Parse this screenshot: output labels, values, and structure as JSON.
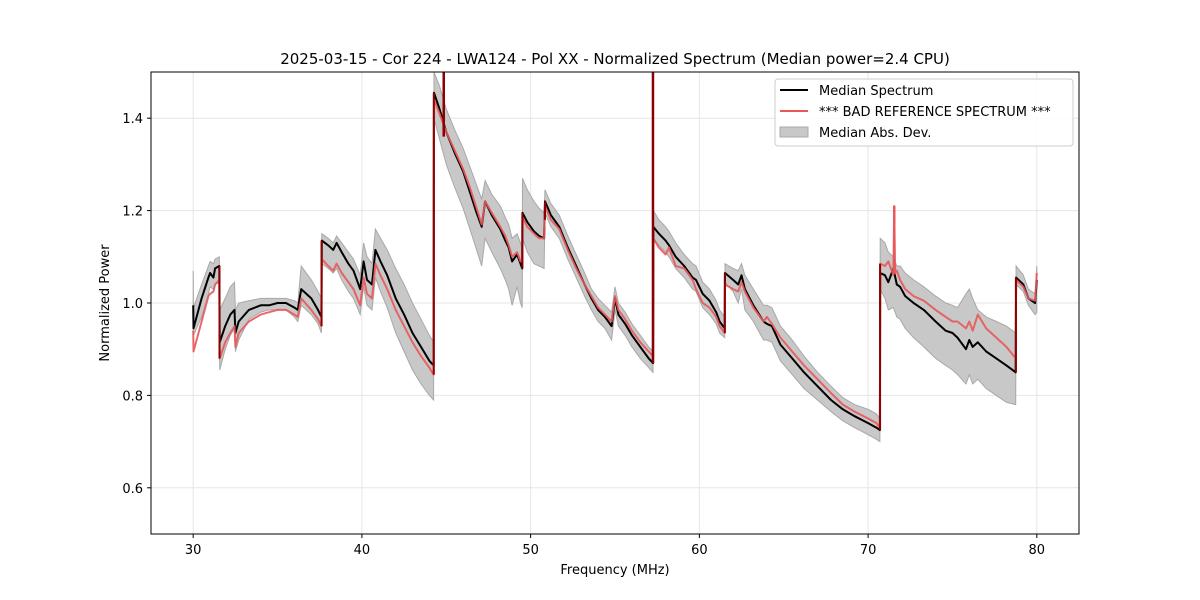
{
  "chart_data": {
    "type": "line",
    "title": "2025-03-15 - Cor 224 - LWA124 - Pol XX - Normalized Spectrum (Median power=2.4 CPU)",
    "xlabel": "Frequency (MHz)",
    "ylabel": "Normalized Power",
    "xlim": [
      27.5,
      82.5
    ],
    "ylim": [
      0.5,
      1.5
    ],
    "xticks": [
      30,
      40,
      50,
      60,
      70,
      80
    ],
    "xtick_labels": [
      "30",
      "40",
      "50",
      "60",
      "70",
      "80"
    ],
    "yticks": [
      0.6,
      0.8,
      1.0,
      1.2,
      1.4
    ],
    "ytick_labels": [
      "0.6",
      "0.8",
      "1.0",
      "1.2",
      "1.4"
    ],
    "grid": true,
    "legend_position": "top-right",
    "legend": [
      {
        "label": "Median Spectrum",
        "kind": "line",
        "color": "#000000"
      },
      {
        "label": "*** BAD REFERENCE SPECTRUM ***",
        "kind": "line",
        "color": "#e8585a"
      },
      {
        "label": "Median Abs. Dev.",
        "kind": "patch",
        "color": "#c8c8c8"
      }
    ],
    "colors": {
      "median": "#000000",
      "reference": "#e8585a",
      "overlap": "#8b0000",
      "mad_fill": "#c8c8c8",
      "mad_edge": "#a8a8a8",
      "grid": "#e6e6e6"
    },
    "series": [
      {
        "name": "Median Spectrum",
        "x": [
          30.0,
          30.02,
          30.5,
          30.9,
          31.0,
          31.2,
          31.3,
          31.55,
          31.57,
          31.9,
          32.2,
          32.45,
          32.5,
          32.7,
          33.3,
          34.0,
          34.5,
          35.0,
          35.5,
          36.0,
          36.2,
          36.4,
          37.0,
          37.4,
          37.6,
          37.62,
          38.0,
          38.3,
          38.5,
          38.8,
          39.2,
          39.5,
          39.9,
          40.1,
          40.3,
          40.6,
          40.8,
          41.1,
          41.5,
          42.0,
          42.5,
          43.0,
          43.5,
          44.0,
          44.25,
          44.27,
          44.6,
          45.0,
          45.5,
          46.0,
          46.4,
          46.8,
          47.1,
          47.3,
          47.7,
          48.2,
          48.5,
          48.7,
          48.9,
          49.2,
          49.4,
          49.5,
          49.52,
          49.8,
          50.2,
          50.5,
          50.8,
          50.85,
          51.2,
          51.7,
          52.2,
          52.7,
          53.2,
          53.6,
          54.0,
          54.4,
          54.8,
          55.0,
          55.2,
          55.6,
          56.0,
          56.5,
          57.0,
          57.25,
          57.27,
          57.6,
          58.0,
          58.2,
          58.6,
          59.1,
          59.6,
          59.8,
          60.2,
          60.6,
          61.0,
          61.2,
          61.5,
          61.52,
          62.0,
          62.3,
          62.5,
          62.7,
          63.2,
          63.8,
          64.0,
          64.3,
          64.8,
          65.5,
          66.2,
          67.0,
          67.8,
          68.5,
          69.2,
          70.0,
          70.5,
          70.7,
          70.72,
          71.0,
          71.2,
          71.5,
          71.7,
          71.9,
          72.2,
          72.7,
          73.3,
          74.0,
          74.6,
          75.0,
          75.3,
          75.8,
          76.0,
          76.2,
          76.5,
          77.0,
          77.6,
          78.2,
          78.75,
          78.77,
          79.2,
          79.5,
          79.9,
          80.0
        ],
        "y": [
          0.995,
          0.945,
          1.01,
          1.055,
          1.065,
          1.055,
          1.075,
          1.08,
          0.915,
          0.95,
          0.975,
          0.985,
          0.935,
          0.96,
          0.985,
          0.995,
          0.995,
          1.0,
          1.0,
          0.99,
          0.985,
          1.03,
          1.01,
          0.985,
          0.97,
          1.135,
          1.125,
          1.115,
          1.13,
          1.11,
          1.085,
          1.07,
          1.03,
          1.09,
          1.05,
          1.04,
          1.115,
          1.09,
          1.06,
          1.01,
          0.975,
          0.935,
          0.905,
          0.875,
          0.865,
          1.455,
          1.42,
          1.37,
          1.325,
          1.285,
          1.24,
          1.195,
          1.165,
          1.22,
          1.19,
          1.16,
          1.135,
          1.12,
          1.09,
          1.105,
          1.085,
          1.075,
          1.195,
          1.175,
          1.155,
          1.145,
          1.14,
          1.22,
          1.19,
          1.165,
          1.12,
          1.08,
          1.04,
          1.01,
          0.985,
          0.97,
          0.95,
          1.01,
          0.975,
          0.955,
          0.93,
          0.905,
          0.88,
          0.87,
          1.165,
          1.15,
          1.135,
          1.125,
          1.1,
          1.08,
          1.055,
          1.05,
          1.02,
          1.005,
          0.98,
          0.96,
          0.945,
          1.065,
          1.05,
          1.04,
          1.06,
          1.03,
          0.995,
          0.96,
          0.955,
          0.95,
          0.91,
          0.88,
          0.85,
          0.82,
          0.79,
          0.77,
          0.755,
          0.74,
          0.73,
          0.725,
          1.065,
          1.06,
          1.045,
          1.075,
          1.04,
          1.035,
          1.015,
          1.0,
          0.985,
          0.96,
          0.94,
          0.935,
          0.925,
          0.9,
          0.92,
          0.905,
          0.915,
          0.895,
          0.88,
          0.865,
          0.85,
          1.055,
          1.04,
          1.01,
          1.0,
          1.05
        ]
      },
      {
        "name": "*** BAD REFERENCE SPECTRUM ***",
        "x": [
          30.0,
          30.02,
          30.5,
          30.9,
          31.0,
          31.2,
          31.3,
          31.55,
          31.57,
          31.9,
          32.2,
          32.45,
          32.5,
          32.7,
          33.3,
          34.0,
          34.5,
          35.0,
          35.5,
          36.0,
          36.2,
          36.4,
          37.0,
          37.4,
          37.6,
          37.62,
          38.0,
          38.3,
          38.5,
          38.8,
          39.2,
          39.5,
          39.9,
          40.1,
          40.3,
          40.6,
          40.8,
          41.1,
          41.5,
          42.0,
          42.5,
          43.0,
          43.5,
          44.0,
          44.25,
          44.27,
          44.6,
          45.0,
          45.5,
          46.0,
          46.4,
          46.8,
          47.1,
          47.3,
          47.7,
          48.2,
          48.5,
          48.7,
          48.9,
          49.2,
          49.4,
          49.5,
          49.52,
          49.8,
          50.2,
          50.5,
          50.8,
          50.85,
          51.2,
          51.7,
          52.2,
          52.7,
          53.2,
          53.6,
          54.0,
          54.4,
          54.8,
          55.0,
          55.2,
          55.6,
          56.0,
          56.5,
          57.0,
          57.25,
          57.27,
          57.6,
          58.0,
          58.2,
          58.6,
          59.1,
          59.6,
          59.8,
          60.2,
          60.6,
          61.0,
          61.2,
          61.5,
          61.52,
          62.0,
          62.3,
          62.5,
          62.7,
          63.2,
          63.8,
          64.0,
          64.3,
          64.8,
          65.5,
          66.2,
          67.0,
          67.8,
          68.5,
          69.2,
          70.0,
          70.5,
          70.7,
          70.72,
          71.0,
          71.2,
          71.5,
          71.55,
          71.6,
          71.7,
          71.9,
          72.2,
          72.7,
          73.3,
          74.0,
          74.6,
          75.0,
          75.3,
          75.8,
          76.0,
          76.2,
          76.5,
          77.0,
          77.6,
          78.2,
          78.75,
          78.77,
          79.2,
          79.5,
          79.9,
          80.0
        ],
        "y": [
          0.94,
          0.895,
          0.96,
          1.015,
          1.02,
          1.025,
          1.04,
          1.05,
          0.88,
          0.915,
          0.935,
          0.95,
          0.905,
          0.935,
          0.96,
          0.975,
          0.98,
          0.985,
          0.985,
          0.975,
          0.97,
          1.01,
          0.985,
          0.965,
          0.95,
          1.095,
          1.08,
          1.07,
          1.085,
          1.065,
          1.045,
          1.03,
          0.995,
          1.055,
          1.02,
          1.01,
          1.085,
          1.06,
          1.03,
          0.985,
          0.95,
          0.915,
          0.885,
          0.86,
          0.845,
          1.44,
          1.41,
          1.37,
          1.33,
          1.29,
          1.25,
          1.205,
          1.17,
          1.22,
          1.195,
          1.165,
          1.145,
          1.125,
          1.1,
          1.11,
          1.09,
          1.095,
          1.185,
          1.165,
          1.15,
          1.14,
          1.14,
          1.21,
          1.18,
          1.16,
          1.115,
          1.075,
          1.04,
          1.015,
          0.99,
          0.975,
          0.96,
          1.015,
          0.985,
          0.965,
          0.94,
          0.915,
          0.895,
          0.885,
          1.14,
          1.12,
          1.105,
          1.12,
          1.08,
          1.075,
          1.05,
          1.03,
          1.0,
          0.99,
          0.97,
          0.95,
          0.935,
          1.04,
          1.03,
          1.025,
          1.045,
          1.025,
          0.99,
          0.96,
          0.97,
          0.955,
          0.925,
          0.895,
          0.865,
          0.835,
          0.805,
          0.78,
          0.765,
          0.75,
          0.74,
          0.73,
          1.085,
          1.08,
          1.09,
          1.06,
          1.21,
          1.065,
          1.07,
          1.05,
          1.03,
          1.015,
          1.005,
          0.985,
          0.97,
          0.96,
          0.96,
          0.945,
          0.96,
          0.94,
          0.975,
          0.945,
          0.925,
          0.905,
          0.88,
          1.05,
          1.035,
          1.01,
          1.005,
          1.065
        ]
      },
      {
        "name": "Median Abs. Dev.",
        "kind": "band",
        "x": [
          30.0,
          30.02,
          30.5,
          30.9,
          31.0,
          31.2,
          31.3,
          31.55,
          31.57,
          31.9,
          32.2,
          32.45,
          32.5,
          32.7,
          33.3,
          34.0,
          34.5,
          35.0,
          35.5,
          36.0,
          36.2,
          36.4,
          37.0,
          37.4,
          37.6,
          37.62,
          38.0,
          38.3,
          38.5,
          38.8,
          39.2,
          39.5,
          39.9,
          40.1,
          40.3,
          40.6,
          40.8,
          41.1,
          41.5,
          42.0,
          42.5,
          43.0,
          43.5,
          44.0,
          44.25,
          44.27,
          44.6,
          45.0,
          45.5,
          46.0,
          46.4,
          46.8,
          47.1,
          47.3,
          47.7,
          48.2,
          48.5,
          48.7,
          48.9,
          49.2,
          49.4,
          49.5,
          49.52,
          49.8,
          50.2,
          50.5,
          50.8,
          50.85,
          51.2,
          51.7,
          52.2,
          52.7,
          53.2,
          53.6,
          54.0,
          54.4,
          54.8,
          55.0,
          55.2,
          55.6,
          56.0,
          56.5,
          57.0,
          57.25,
          57.27,
          57.6,
          58.0,
          58.2,
          58.6,
          59.1,
          59.6,
          59.8,
          60.2,
          60.6,
          61.0,
          61.2,
          61.5,
          61.52,
          62.0,
          62.3,
          62.5,
          62.7,
          63.2,
          63.8,
          64.0,
          64.3,
          64.8,
          65.5,
          66.2,
          67.0,
          67.8,
          68.5,
          69.2,
          70.0,
          70.5,
          70.7,
          70.72,
          71.0,
          71.2,
          71.5,
          71.7,
          71.9,
          72.2,
          72.7,
          73.3,
          74.0,
          74.6,
          75.0,
          75.3,
          75.8,
          76.0,
          76.2,
          76.5,
          77.0,
          77.6,
          78.2,
          78.75,
          78.77,
          79.2,
          79.5,
          79.9,
          80.0
        ],
        "lower": [
          0.94,
          0.93,
          0.97,
          1.02,
          1.035,
          1.03,
          1.04,
          1.045,
          0.855,
          0.9,
          0.93,
          0.945,
          0.895,
          0.92,
          0.965,
          0.98,
          0.985,
          0.985,
          0.985,
          0.97,
          0.96,
          0.995,
          0.975,
          0.955,
          0.935,
          1.085,
          1.075,
          1.065,
          1.075,
          1.05,
          1.025,
          1.01,
          0.975,
          1.035,
          0.995,
          0.985,
          1.055,
          1.025,
          0.99,
          0.935,
          0.895,
          0.855,
          0.825,
          0.8,
          0.79,
          1.4,
          1.355,
          1.3,
          1.25,
          1.205,
          1.16,
          1.115,
          1.08,
          1.14,
          1.11,
          1.075,
          1.05,
          1.03,
          0.995,
          1.035,
          1.0,
          0.99,
          1.14,
          1.11,
          1.085,
          1.08,
          1.075,
          1.195,
          1.165,
          1.14,
          1.095,
          1.055,
          1.015,
          0.985,
          0.96,
          0.945,
          0.92,
          0.985,
          0.95,
          0.93,
          0.905,
          0.88,
          0.86,
          0.85,
          1.14,
          1.125,
          1.11,
          1.1,
          1.075,
          1.055,
          1.03,
          1.025,
          0.99,
          0.975,
          0.955,
          0.935,
          0.925,
          1.045,
          1.025,
          1.0,
          1.03,
          0.985,
          0.96,
          0.92,
          0.92,
          0.915,
          0.875,
          0.845,
          0.815,
          0.79,
          0.765,
          0.745,
          0.73,
          0.715,
          0.705,
          0.7,
          1.03,
          1.01,
          0.985,
          0.99,
          0.97,
          0.965,
          0.945,
          0.925,
          0.905,
          0.88,
          0.865,
          0.855,
          0.845,
          0.825,
          0.845,
          0.825,
          0.835,
          0.815,
          0.8,
          0.785,
          0.78,
          1.04,
          1.025,
          0.995,
          0.975,
          0.98
        ],
        "upper": [
          1.07,
          0.99,
          1.04,
          1.08,
          1.09,
          1.085,
          1.095,
          1.1,
          0.985,
          1.01,
          1.035,
          1.045,
          0.985,
          1.0,
          1.005,
          1.01,
          1.01,
          1.01,
          1.01,
          1.005,
          1.0,
          1.08,
          1.05,
          1.025,
          1.01,
          1.15,
          1.14,
          1.13,
          1.145,
          1.13,
          1.11,
          1.095,
          1.06,
          1.13,
          1.1,
          1.085,
          1.16,
          1.14,
          1.115,
          1.075,
          1.04,
          1.0,
          0.965,
          0.93,
          0.915,
          1.5,
          1.47,
          1.42,
          1.375,
          1.335,
          1.295,
          1.255,
          1.225,
          1.265,
          1.235,
          1.21,
          1.185,
          1.17,
          1.14,
          1.15,
          1.13,
          1.115,
          1.27,
          1.245,
          1.22,
          1.205,
          1.195,
          1.245,
          1.215,
          1.19,
          1.145,
          1.105,
          1.065,
          1.03,
          1.01,
          0.995,
          0.98,
          1.035,
          1.0,
          0.98,
          0.955,
          0.93,
          0.905,
          0.895,
          1.2,
          1.18,
          1.165,
          1.155,
          1.13,
          1.105,
          1.085,
          1.08,
          1.045,
          1.03,
          1.005,
          0.985,
          0.97,
          1.085,
          1.075,
          1.07,
          1.085,
          1.06,
          1.03,
          0.995,
          0.995,
          0.99,
          0.95,
          0.92,
          0.885,
          0.85,
          0.82,
          0.795,
          0.78,
          0.77,
          0.76,
          0.75,
          1.14,
          1.13,
          1.11,
          1.1,
          1.08,
          1.08,
          1.065,
          1.05,
          1.035,
          1.015,
          1.0,
          0.995,
          0.99,
          1.02,
          1.03,
          1.01,
          0.985,
          0.97,
          0.96,
          0.95,
          0.935,
          1.08,
          1.06,
          1.03,
          1.02,
          1.08
        ]
      }
    ],
    "spikes": [
      {
        "x": 44.85,
        "series": "both",
        "y_from": 1.36,
        "y_to": 1.5
      },
      {
        "x": 57.25,
        "series": "both",
        "y_from": 0.87,
        "y_to": 1.5
      },
      {
        "x": 71.55,
        "series": "reference",
        "y_from": 1.065,
        "y_to": 1.21
      }
    ]
  }
}
